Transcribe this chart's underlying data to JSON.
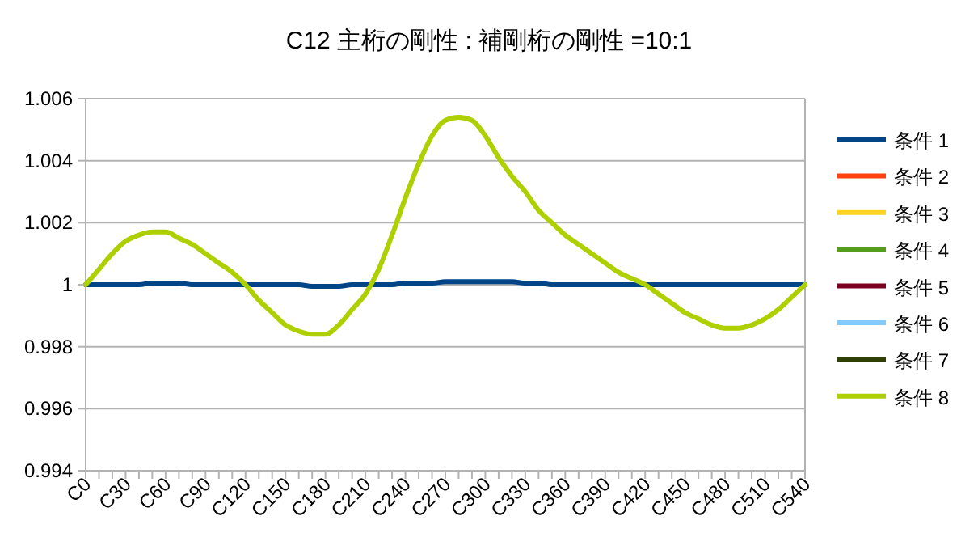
{
  "chart_data": {
    "type": "line",
    "title": "C12  主桁の剛性 : 補剛桁の剛性 =10:1",
    "categories": [
      "C0",
      null,
      null,
      "C30",
      null,
      null,
      "C60",
      null,
      null,
      "C90",
      null,
      null,
      "C120",
      null,
      null,
      "C150",
      null,
      null,
      "C180",
      null,
      null,
      "C210",
      null,
      null,
      "C240",
      null,
      null,
      "C270",
      null,
      null,
      "C300",
      null,
      null,
      "C330",
      null,
      null,
      "C360",
      null,
      null,
      "C390",
      null,
      null,
      "C420",
      null,
      null,
      "C450",
      null,
      null,
      "C480",
      null,
      null,
      "C510",
      null,
      null,
      "C540"
    ],
    "ylim": [
      0.994,
      1.006
    ],
    "yticks": [
      0.994,
      0.996,
      0.998,
      1,
      1.002,
      1.004,
      1.006
    ],
    "grid": "y",
    "legend": "right",
    "line_style": "solid",
    "marker": "none",
    "series": [
      {
        "name": "条件 1",
        "color": "#004586",
        "values": [
          1,
          1,
          1,
          1,
          1,
          1.00005,
          1.00005,
          1.00005,
          1,
          1,
          1,
          1,
          1,
          1,
          1,
          1,
          1,
          0.99995,
          0.99995,
          0.99995,
          1,
          1,
          1,
          1,
          1.00005,
          1.00005,
          1.00005,
          1.0001,
          1.0001,
          1.0001,
          1.0001,
          1.0001,
          1.0001,
          1.00005,
          1.00005,
          1,
          1,
          1,
          1,
          1,
          1,
          1,
          1,
          1,
          1,
          1,
          1,
          1,
          1,
          1,
          1,
          1,
          1,
          1,
          1
        ]
      },
      {
        "name": "条件 2",
        "color": "#ff420e",
        "values": [
          null,
          null,
          null,
          null,
          null,
          null,
          null,
          null,
          null,
          null,
          null,
          null,
          null,
          null,
          null,
          null,
          null,
          null,
          null,
          null,
          null,
          null,
          null,
          null,
          null,
          null,
          null,
          null,
          null,
          null,
          null,
          null,
          null,
          null,
          null,
          null,
          null,
          null,
          null,
          null,
          null,
          null,
          null,
          null,
          null,
          null,
          null,
          null,
          null,
          null,
          null,
          null,
          null,
          null,
          null
        ]
      },
      {
        "name": "条件 3",
        "color": "#ffd320",
        "values": [
          null,
          null,
          null,
          null,
          null,
          null,
          null,
          null,
          null,
          null,
          null,
          null,
          null,
          null,
          null,
          null,
          null,
          null,
          null,
          null,
          null,
          null,
          null,
          null,
          null,
          null,
          null,
          null,
          null,
          null,
          null,
          null,
          null,
          null,
          null,
          null,
          null,
          null,
          null,
          null,
          null,
          null,
          null,
          null,
          null,
          null,
          null,
          null,
          null,
          null,
          null,
          null,
          null,
          null,
          null
        ]
      },
      {
        "name": "条件 4",
        "color": "#579d1c",
        "values": [
          null,
          null,
          null,
          null,
          null,
          null,
          null,
          null,
          null,
          null,
          null,
          null,
          null,
          null,
          null,
          null,
          null,
          null,
          null,
          null,
          null,
          null,
          null,
          null,
          null,
          null,
          null,
          null,
          null,
          null,
          null,
          null,
          null,
          null,
          null,
          null,
          null,
          null,
          null,
          null,
          null,
          null,
          null,
          null,
          null,
          null,
          null,
          null,
          null,
          null,
          null,
          null,
          null,
          null,
          null
        ]
      },
      {
        "name": "条件 5",
        "color": "#7e0021",
        "values": [
          null,
          null,
          null,
          null,
          null,
          null,
          null,
          null,
          null,
          null,
          null,
          null,
          null,
          null,
          null,
          null,
          null,
          null,
          null,
          null,
          null,
          null,
          null,
          null,
          null,
          null,
          null,
          null,
          null,
          null,
          null,
          null,
          null,
          null,
          null,
          null,
          null,
          null,
          null,
          null,
          null,
          null,
          null,
          null,
          null,
          null,
          null,
          null,
          null,
          null,
          null,
          null,
          null,
          null,
          null
        ]
      },
      {
        "name": "条件 6",
        "color": "#83caff",
        "values": [
          null,
          null,
          null,
          null,
          null,
          null,
          null,
          null,
          null,
          null,
          null,
          null,
          null,
          null,
          null,
          null,
          null,
          null,
          null,
          null,
          null,
          null,
          null,
          null,
          null,
          null,
          null,
          null,
          null,
          null,
          null,
          null,
          null,
          null,
          null,
          null,
          null,
          null,
          null,
          null,
          null,
          null,
          null,
          null,
          null,
          null,
          null,
          null,
          null,
          null,
          null,
          null,
          null,
          null,
          null
        ]
      },
      {
        "name": "条件 7",
        "color": "#314004",
        "values": [
          null,
          null,
          null,
          null,
          null,
          null,
          null,
          null,
          null,
          null,
          null,
          null,
          null,
          null,
          null,
          null,
          null,
          null,
          null,
          null,
          null,
          null,
          null,
          null,
          null,
          null,
          null,
          null,
          null,
          null,
          null,
          null,
          null,
          null,
          null,
          null,
          null,
          null,
          null,
          null,
          null,
          null,
          null,
          null,
          null,
          null,
          null,
          null,
          null,
          null,
          null,
          null,
          null,
          null,
          null
        ]
      },
      {
        "name": "条件 8",
        "color": "#aecf00",
        "values": [
          1,
          1.0005,
          1.001,
          1.0014,
          1.0016,
          1.0017,
          1.0017,
          1.0015,
          1.0013,
          1.001,
          1.0007,
          1.0004,
          1,
          0.9995,
          0.9991,
          0.9987,
          0.9985,
          0.9984,
          0.9984,
          0.9987,
          0.9992,
          0.9997,
          1.0005,
          1.0016,
          1.0028,
          1.0039,
          1.0048,
          1.0053,
          1.0054,
          1.0053,
          1.0048,
          1.0041,
          1.0035,
          1.003,
          1.0024,
          1.002,
          1.0016,
          1.0013,
          1.001,
          1.0007,
          1.0004,
          1.0002,
          1,
          0.9997,
          0.9994,
          0.9991,
          0.9989,
          0.9987,
          0.9986,
          0.9986,
          0.9987,
          0.9989,
          0.9992,
          0.9996,
          1
        ]
      }
    ]
  }
}
